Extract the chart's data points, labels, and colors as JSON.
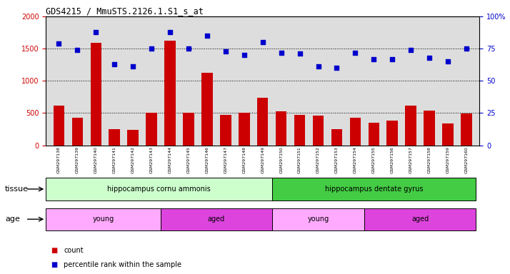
{
  "title": "GDS4215 / MmuSTS.2126.1.S1_s_at",
  "samples": [
    "GSM297138",
    "GSM297139",
    "GSM297140",
    "GSM297141",
    "GSM297142",
    "GSM297143",
    "GSM297144",
    "GSM297145",
    "GSM297146",
    "GSM297147",
    "GSM297148",
    "GSM297149",
    "GSM297150",
    "GSM297151",
    "GSM297152",
    "GSM297153",
    "GSM297154",
    "GSM297155",
    "GSM297156",
    "GSM297157",
    "GSM297158",
    "GSM297159",
    "GSM297160"
  ],
  "counts": [
    620,
    430,
    1590,
    255,
    240,
    500,
    1620,
    500,
    1120,
    470,
    500,
    740,
    530,
    470,
    455,
    255,
    430,
    350,
    385,
    620,
    540,
    335,
    490
  ],
  "percentiles": [
    79,
    74,
    88,
    63,
    61,
    75,
    88,
    75,
    85,
    73,
    70,
    80,
    72,
    71,
    61,
    60,
    72,
    67,
    67,
    74,
    68,
    65,
    75
  ],
  "bar_color": "#cc0000",
  "dot_color": "#0000cc",
  "ylim_left": [
    0,
    2000
  ],
  "ylim_right": [
    0,
    100
  ],
  "yticks_left": [
    0,
    500,
    1000,
    1500,
    2000
  ],
  "yticks_right": [
    0,
    25,
    50,
    75,
    100
  ],
  "grid_values": [
    500,
    1000,
    1500
  ],
  "tissue_groups": [
    {
      "label": "hippocampus cornu ammonis",
      "start": 0,
      "end": 12,
      "color": "#ccffcc"
    },
    {
      "label": "hippocampus dentate gyrus",
      "start": 12,
      "end": 23,
      "color": "#44cc44"
    }
  ],
  "age_groups": [
    {
      "label": "young",
      "start": 0,
      "end": 6,
      "color": "#ffaaff"
    },
    {
      "label": "aged",
      "start": 6,
      "end": 12,
      "color": "#dd44dd"
    },
    {
      "label": "young",
      "start": 12,
      "end": 17,
      "color": "#ffaaff"
    },
    {
      "label": "aged",
      "start": 17,
      "end": 23,
      "color": "#dd44dd"
    }
  ],
  "legend_count_label": "count",
  "legend_pct_label": "percentile rank within the sample",
  "tissue_label": "tissue",
  "age_label": "age",
  "bg_color": "#dddddd"
}
